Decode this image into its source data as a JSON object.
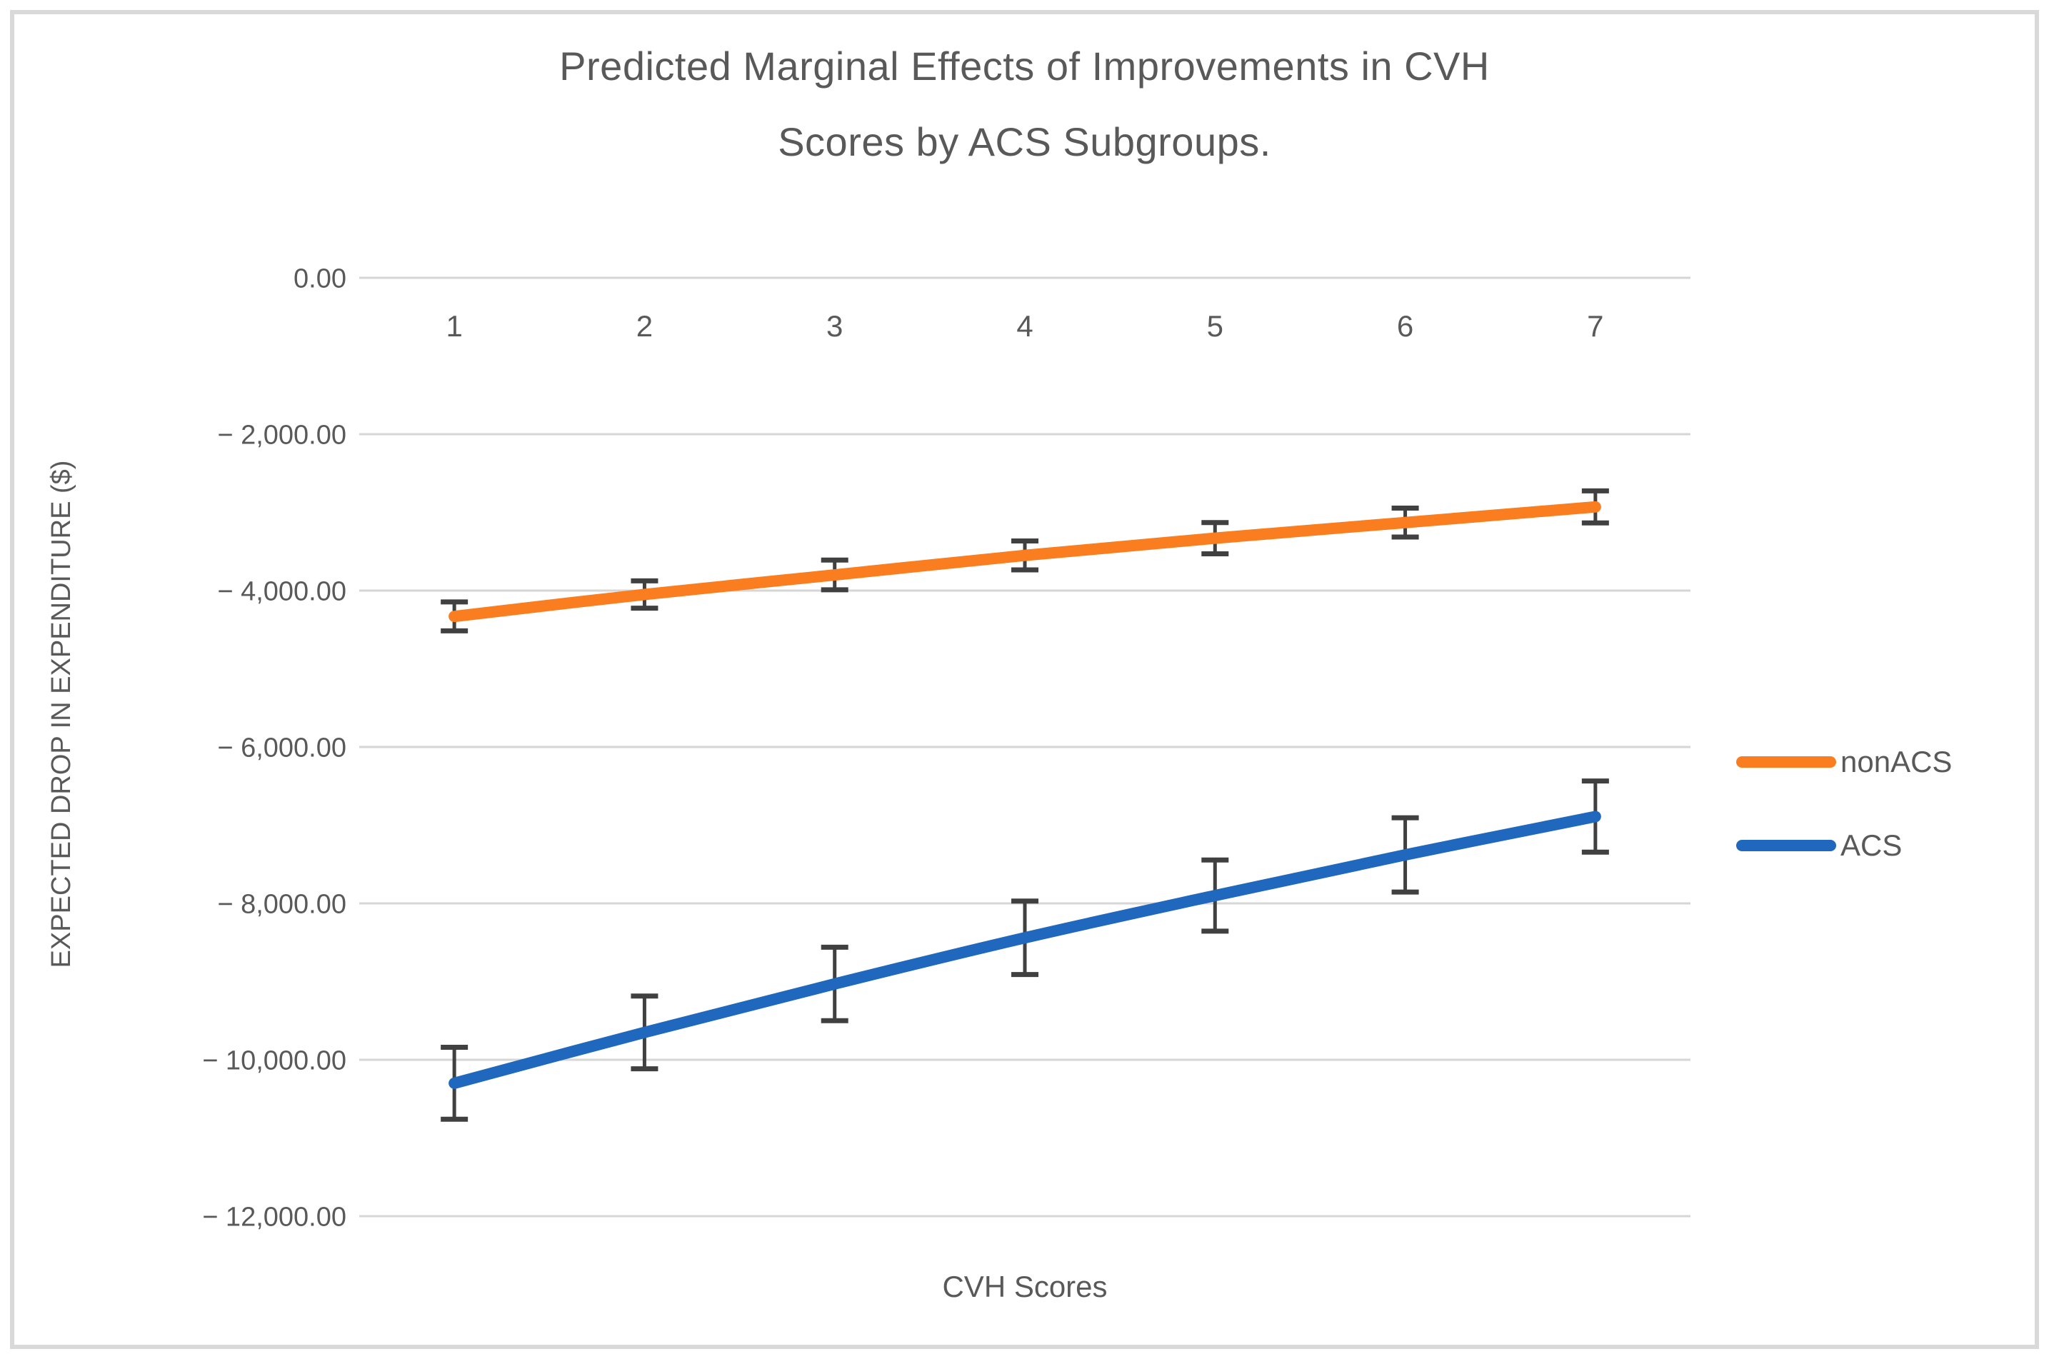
{
  "frame": {
    "background_color": "#ffffff",
    "border_color": "#d9d9d9"
  },
  "chart_data": {
    "type": "line",
    "title": "Predicted Marginal Effects of Improvements in CVH Scores by ACS Subgroups.",
    "title_lines": [
      "Predicted Marginal Effects of Improvements in CVH",
      "Scores by ACS Subgroups."
    ],
    "xlabel": "CVH Scores",
    "ylabel": "EXPECTED DROP IN EXPENDITURE ($)",
    "categories": [
      "1",
      "2",
      "3",
      "4",
      "5",
      "6",
      "7"
    ],
    "y_tick_labels": [
      "0.00",
      "− 2,000.00",
      "− 4,000.00",
      "− 6,000.00",
      "− 8,000.00",
      "− 10,000.00",
      "− 12,000.00"
    ],
    "y_tick_values": [
      0,
      -2000,
      -4000,
      -6000,
      -8000,
      -10000,
      -12000
    ],
    "ylim": [
      -12000,
      0
    ],
    "grid": true,
    "legend_position": "right",
    "series": [
      {
        "name": "nonACS",
        "color": "#FA7D1F",
        "values": [
          -4330,
          -4050,
          -3800,
          -3550,
          -3330,
          -3130,
          -2930
        ],
        "error": [
          185,
          175,
          190,
          185,
          200,
          185,
          205
        ]
      },
      {
        "name": "ACS",
        "color": "#2068BE",
        "values": [
          -10300,
          -9650,
          -9030,
          -8440,
          -7900,
          -7380,
          -6890
        ],
        "error": [
          460,
          465,
          470,
          470,
          455,
          475,
          455
        ]
      }
    ],
    "colors": {
      "gridline": "#d6d6d6",
      "error_bar": "#404040",
      "text": "#595959"
    }
  }
}
